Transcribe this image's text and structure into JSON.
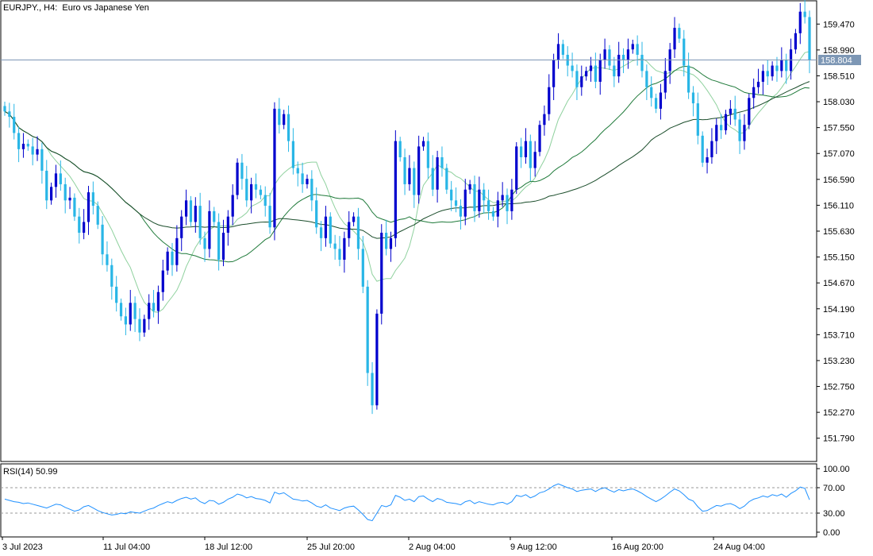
{
  "header": {
    "symbol": "EURJPY.",
    "timeframe": "H4",
    "description": "Euro vs Japanese Yen"
  },
  "rsi_header": {
    "name": "RSI(14)",
    "value": "50.99"
  },
  "current_price": "158.804",
  "colors": {
    "bull": "#0000cd",
    "bear": "#29b6e6",
    "ma_fast": "#8fd19e",
    "ma_mid": "#1f7a3a",
    "ma_slow": "#1b4d2b",
    "rsi_line": "#1e90ff",
    "price_line": "#7d97b5",
    "price_tag_bg": "#7d97b5"
  },
  "chart_data": [
    {
      "type": "candlestick",
      "title": "EURJPY., H4:  Euro vs Japanese Yen",
      "y_ticks": [
        "159.470",
        "158.990",
        "158.510",
        "158.030",
        "157.550",
        "157.070",
        "156.590",
        "156.110",
        "155.630",
        "155.150",
        "154.670",
        "154.190",
        "153.710",
        "153.230",
        "152.750",
        "152.270",
        "151.790"
      ],
      "ylim": [
        151.3,
        160.1
      ],
      "x_ticks": [
        "3 Jul 2023",
        "11 Jul 04:00",
        "18 Jul 12:00",
        "25 Jul 20:00",
        "2 Aug 04:00",
        "9 Aug 12:00",
        "16 Aug 20:00",
        "24 Aug 04:00"
      ],
      "current_price": 158.804,
      "candles_close": [
        157.85,
        157.75,
        157.45,
        157.15,
        157.25,
        157.2,
        157.05,
        157.15,
        156.75,
        156.2,
        156.45,
        156.7,
        156.5,
        156.2,
        156.25,
        155.9,
        155.6,
        155.8,
        156.35,
        156.1,
        155.75,
        155.2,
        155.0,
        154.6,
        154.3,
        154.05,
        153.9,
        154.3,
        154.0,
        153.75,
        154.0,
        154.3,
        154.15,
        154.5,
        154.9,
        155.25,
        155.0,
        155.5,
        155.9,
        156.2,
        155.8,
        156.1,
        155.5,
        155.3,
        156.0,
        155.8,
        155.1,
        155.6,
        155.9,
        156.3,
        156.9,
        156.6,
        156.2,
        156.5,
        156.4,
        156.3,
        156.1,
        155.7,
        157.9,
        157.6,
        157.8,
        157.3,
        156.8,
        156.7,
        156.5,
        156.6,
        156.2,
        155.7,
        155.5,
        155.9,
        155.4,
        155.3,
        155.1,
        155.5,
        155.8,
        155.9,
        155.3,
        154.6,
        153.0,
        152.4,
        154.1,
        155.6,
        155.3,
        155.5,
        157.3,
        157.0,
        156.5,
        156.8,
        156.3,
        157.2,
        157.3,
        156.8,
        156.4,
        157.0,
        156.8,
        156.4,
        156.2,
        156.1,
        155.9,
        156.4,
        156.5,
        156.0,
        156.4,
        156.2,
        156.0,
        155.9,
        156.2,
        156.3,
        156.0,
        156.4,
        157.2,
        157.0,
        157.3,
        156.8,
        157.1,
        157.6,
        157.8,
        158.3,
        158.8,
        159.1,
        158.9,
        158.7,
        158.6,
        158.3,
        158.5,
        158.6,
        158.7,
        158.4,
        158.8,
        159.0,
        158.7,
        158.5,
        158.9,
        158.8,
        159.0,
        159.1,
        158.9,
        158.6,
        158.3,
        158.1,
        157.9,
        158.2,
        158.6,
        159.0,
        159.4,
        159.2,
        158.7,
        158.2,
        158.0,
        157.4,
        156.9,
        157.0,
        157.3,
        157.6,
        157.5,
        157.8,
        157.9,
        157.7,
        157.3,
        157.6,
        158.1,
        158.3,
        158.4,
        158.6,
        158.5,
        158.7,
        158.6,
        158.8,
        158.6,
        159.0,
        159.3,
        159.7,
        159.6,
        158.8
      ]
    },
    {
      "type": "line",
      "title": "RSI(14) 50.99",
      "y_ticks": [
        "100.00",
        "70.00",
        "30.00",
        "0.00"
      ],
      "ylim": [
        0,
        100
      ],
      "levels": [
        70,
        30
      ],
      "values": [
        52,
        50,
        48,
        47,
        45,
        46,
        44,
        42,
        40,
        38,
        41,
        44,
        43,
        39,
        36,
        33,
        35,
        40,
        42,
        38,
        34,
        31,
        29,
        27,
        28,
        30,
        29,
        32,
        31,
        30,
        33,
        36,
        38,
        42,
        45,
        48,
        46,
        50,
        53,
        55,
        52,
        54,
        48,
        45,
        50,
        49,
        44,
        47,
        52,
        55,
        60,
        58,
        54,
        56,
        53,
        52,
        50,
        46,
        63,
        60,
        62,
        57,
        52,
        51,
        49,
        50,
        46,
        41,
        39,
        43,
        38,
        36,
        34,
        38,
        40,
        41,
        35,
        28,
        20,
        18,
        30,
        42,
        40,
        43,
        58,
        55,
        50,
        52,
        48,
        56,
        57,
        52,
        48,
        53,
        51,
        47,
        46,
        45,
        43,
        48,
        50,
        45,
        48,
        46,
        44,
        43,
        46,
        47,
        44,
        48,
        58,
        56,
        59,
        54,
        57,
        62,
        64,
        68,
        73,
        76,
        73,
        70,
        68,
        64,
        66,
        67,
        68,
        64,
        68,
        70,
        66,
        63,
        67,
        65,
        67,
        68,
        65,
        61,
        56,
        52,
        48,
        52,
        57,
        63,
        68,
        65,
        59,
        52,
        49,
        40,
        33,
        34,
        38,
        42,
        41,
        44,
        45,
        42,
        37,
        41,
        48,
        52,
        54,
        57,
        55,
        59,
        57,
        60,
        55,
        61,
        65,
        71,
        69,
        51
      ]
    }
  ]
}
